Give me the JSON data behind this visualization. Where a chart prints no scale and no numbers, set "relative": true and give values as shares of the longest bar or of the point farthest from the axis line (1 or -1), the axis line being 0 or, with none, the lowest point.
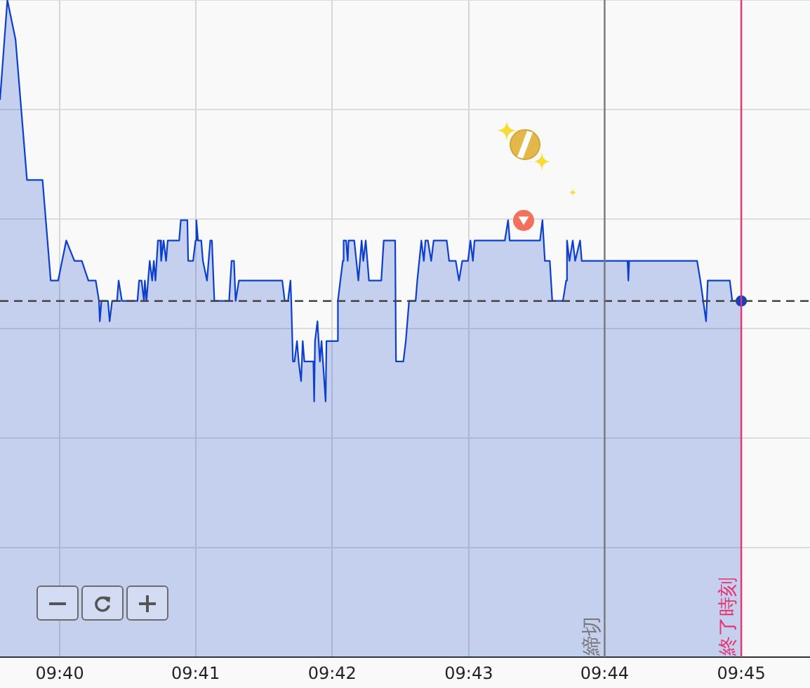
{
  "chart_data": {
    "type": "area",
    "relative": true,
    "x": [
      9.6594,
      9.6603,
      9.6613,
      9.6627,
      9.6646,
      9.6656,
      9.6665,
      9.6675,
      9.6685,
      9.6694,
      9.6702,
      9.6711,
      9.6715,
      9.6716,
      9.6718,
      9.6726,
      9.6728,
      9.6731,
      9.6737,
      9.6739,
      9.6743,
      9.6762,
      9.6764,
      9.6767,
      9.677,
      9.6771,
      9.6773,
      9.6775,
      9.6777,
      9.678,
      9.6782,
      9.6784,
      9.6787,
      9.679,
      9.6791,
      9.6794,
      9.6797,
      9.6799,
      9.6813,
      9.6815,
      9.6823,
      9.6824,
      9.683,
      9.6833,
      9.6834,
      9.6836,
      9.684,
      9.6842,
      9.6847,
      9.6851,
      9.6853,
      9.6856,
      9.6874,
      9.6877,
      9.688,
      9.6882,
      9.6886,
      9.6939,
      9.6942,
      9.6946,
      9.6949,
      9.695,
      9.6952,
      9.6954,
      9.6957,
      9.6959,
      9.6962,
      9.6964,
      9.6966,
      9.6977,
      9.6978,
      9.6979,
      9.6982,
      9.6985,
      9.6987,
      9.6992,
      9.6993,
      9.7006,
      9.7007,
      9.701,
      9.7013,
      9.7014,
      9.7017,
      9.7019,
      9.702,
      9.7027,
      9.7032,
      9.7036,
      9.7038,
      9.7041,
      9.7045,
      9.706,
      9.7063,
      9.7077,
      9.7078,
      9.7087,
      9.709,
      9.7094,
      9.7102,
      9.7104,
      9.7109,
      9.7112,
      9.7114,
      9.7117,
      9.7121,
      9.7124,
      9.714,
      9.7143,
      9.7151,
      9.7155,
      9.7159,
      9.7166,
      9.7169,
      9.7172,
      9.7174,
      9.7211,
      9.7215,
      9.7217,
      9.7223,
      9.7226,
      9.7243,
      9.7246,
      9.7254,
      9.7257,
      9.726,
      9.7266,
      9.7269,
      9.7282,
      9.7286,
      9.7287,
      9.729,
      9.7294,
      9.7297,
      9.7303,
      9.7305,
      9.7361,
      9.7362,
      9.7363,
      9.7446,
      9.745,
      9.7457,
      9.7459,
      9.7486,
      9.7489,
      9.75
    ],
    "series": [
      {
        "color": "#0c3fce",
        "values": [
          0.848,
          1,
          0.94,
          0.726,
          0.726,
          0.573,
          0.573,
          0.634,
          0.603,
          0.603,
          0.573,
          0.573,
          0.542,
          0.511,
          0.542,
          0.542,
          0.511,
          0.542,
          0.542,
          0.573,
          0.542,
          0.542,
          0.573,
          0.573,
          0.542,
          0.573,
          0.542,
          0.573,
          0.603,
          0.573,
          0.603,
          0.573,
          0.634,
          0.634,
          0.603,
          0.634,
          0.603,
          0.634,
          0.634,
          0.665,
          0.665,
          0.603,
          0.603,
          0.634,
          0.665,
          0.634,
          0.634,
          0.603,
          0.573,
          0.634,
          0.634,
          0.542,
          0.542,
          0.603,
          0.603,
          0.542,
          0.573,
          0.573,
          0.542,
          0.542,
          0.573,
          0.542,
          0.45,
          0.45,
          0.481,
          0.45,
          0.42,
          0.481,
          0.45,
          0.45,
          0.389,
          0.481,
          0.511,
          0.45,
          0.481,
          0.389,
          0.481,
          0.481,
          0.542,
          0.573,
          0.603,
          0.634,
          0.634,
          0.603,
          0.634,
          0.634,
          0.573,
          0.634,
          0.603,
          0.634,
          0.573,
          0.573,
          0.634,
          0.634,
          0.45,
          0.45,
          0.481,
          0.542,
          0.542,
          0.573,
          0.634,
          0.603,
          0.634,
          0.634,
          0.603,
          0.634,
          0.634,
          0.603,
          0.603,
          0.573,
          0.603,
          0.603,
          0.634,
          0.603,
          0.634,
          0.634,
          0.665,
          0.634,
          0.634,
          null,
          null,
          0.634,
          0.634,
          0.665,
          0.603,
          0.603,
          0.542,
          0.542,
          0.573,
          0.634,
          0.603,
          0.634,
          0.603,
          0.634,
          0.603,
          0.603,
          0.573,
          0.603,
          0.603,
          0.573,
          0.511,
          0.573,
          0.573,
          0.542,
          0.542
        ]
      },
      {
        "type": "scatter",
        "color": "#0c3fce",
        "marker": "circle",
        "x": [
          9.75
        ],
        "values": [
          0.542
        ]
      }
    ],
    "xlim": [
      9.6594,
      9.7584
    ],
    "xticks": [
      {
        "value": 9.6667,
        "label": "09:40"
      },
      {
        "value": 9.6833,
        "label": "09:41"
      },
      {
        "value": 9.7,
        "label": "09:42"
      },
      {
        "value": 9.7167,
        "label": "09:43"
      },
      {
        "value": 9.7333,
        "label": "09:44"
      },
      {
        "value": 9.75,
        "label": "09:45"
      }
    ],
    "grid": true,
    "ref_lines": [
      {
        "axis": "y",
        "value": 0.542,
        "color": "#444444",
        "line_style": "dashed"
      },
      {
        "axis": "x",
        "value": 9.7333,
        "label": "締切",
        "color": "#777777"
      },
      {
        "axis": "x",
        "value": 9.75,
        "label": "終了時刻",
        "color": "#e8336f"
      }
    ]
  }
}
